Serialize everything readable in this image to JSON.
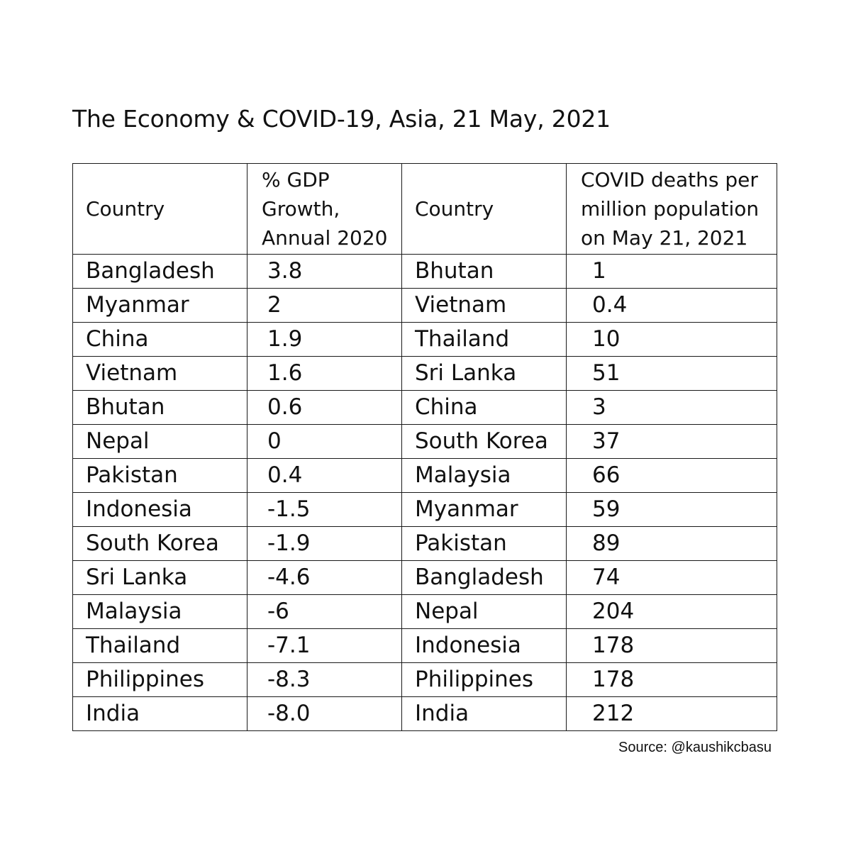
{
  "title": "The Economy & COVID-19, Asia, 21 May, 2021",
  "headers": {
    "country_left": "Country",
    "gdp_line1": "% GDP",
    "gdp_line2": "Growth,",
    "gdp_line3": "Annual 2020",
    "country_right": "Country",
    "covid_line1": "COVID deaths per",
    "covid_line2": "million population",
    "covid_line3": "on May 21, 2021"
  },
  "rows": [
    {
      "gdp_country": "Bangladesh",
      "gdp": "3.8",
      "covid_country": "Bhutan",
      "deaths": "1"
    },
    {
      "gdp_country": "Myanmar",
      "gdp": "2",
      "covid_country": "Vietnam",
      "deaths": "0.4"
    },
    {
      "gdp_country": "China",
      "gdp": "1.9",
      "covid_country": "Thailand",
      "deaths": "10"
    },
    {
      "gdp_country": "Vietnam",
      "gdp": "1.6",
      "covid_country": "Sri Lanka",
      "deaths": "51"
    },
    {
      "gdp_country": "Bhutan",
      "gdp": "0.6",
      "covid_country": "China",
      "deaths": "3"
    },
    {
      "gdp_country": "Nepal",
      "gdp": "0",
      "covid_country": "South Korea",
      "deaths": "37"
    },
    {
      "gdp_country": "Pakistan",
      "gdp": "0.4",
      "covid_country": "Malaysia",
      "deaths": "66"
    },
    {
      "gdp_country": "Indonesia",
      "gdp": "-1.5",
      "covid_country": "Myanmar",
      "deaths": "59"
    },
    {
      "gdp_country": "South Korea",
      "gdp": "-1.9",
      "covid_country": "Pakistan",
      "deaths": "89"
    },
    {
      "gdp_country": "Sri Lanka",
      "gdp": "-4.6",
      "covid_country": "Bangladesh",
      "deaths": "74"
    },
    {
      "gdp_country": "Malaysia",
      "gdp": "-6",
      "covid_country": "Nepal",
      "deaths": "204"
    },
    {
      "gdp_country": "Thailand",
      "gdp": "-7.1",
      "covid_country": "Indonesia",
      "deaths": "178"
    },
    {
      "gdp_country": "Philippines",
      "gdp": "-8.3",
      "covid_country": "Philippines",
      "deaths": "178"
    },
    {
      "gdp_country": "India",
      "gdp": "-8.0",
      "covid_country": "India",
      "deaths": "212"
    }
  ],
  "source": "Source: @kaushikcbasu"
}
